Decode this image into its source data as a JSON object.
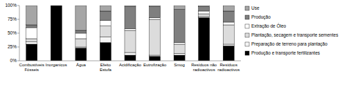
{
  "chart_data": {
    "type": "bar",
    "stacked": true,
    "categories": [
      "Combustíveis Fósseis",
      "Inorganicos",
      "Água",
      "Efeito Estufa",
      "Acidificação",
      "Eutrofização",
      "Smog",
      "Resíduos não radioactivos",
      "Resíduos radioactivos"
    ],
    "series": [
      {
        "name": "Produção e transporte fertilizantes",
        "color": "#000000",
        "values": [
          30,
          100,
          23,
          33,
          10,
          8,
          10,
          78,
          27
        ]
      },
      {
        "name": "Preparação de terreno para plantação",
        "color": "#f4f4f4",
        "values": [
          4,
          0,
          2,
          10,
          5,
          2,
          3,
          2,
          3
        ]
      },
      {
        "name": "Plantação, secagem e transporte sementes",
        "color": "#dcdcdc",
        "values": [
          6,
          0,
          15,
          20,
          40,
          65,
          17,
          5,
          35
        ]
      },
      {
        "name": "Extração de Óleo",
        "color": "#ffffff",
        "values": [
          20,
          0,
          10,
          10,
          3,
          3,
          3,
          5,
          5
        ]
      },
      {
        "name": "Produção",
        "color": "#7f7f7f",
        "values": [
          5,
          0,
          5,
          17,
          40,
          20,
          60,
          8,
          20
        ]
      },
      {
        "name": "Use",
        "color": "#a6a6a6",
        "values": [
          35,
          0,
          45,
          10,
          2,
          2,
          7,
          2,
          10
        ]
      }
    ],
    "ylim": [
      0,
      100
    ],
    "yticks": [
      {
        "value": 0,
        "label": "0%"
      },
      {
        "value": 25,
        "label": "25%"
      },
      {
        "value": 50,
        "label": "50%"
      },
      {
        "value": 75,
        "label": "75%"
      },
      {
        "value": 100,
        "label": "100%"
      }
    ],
    "grid": false,
    "legend": "right"
  }
}
